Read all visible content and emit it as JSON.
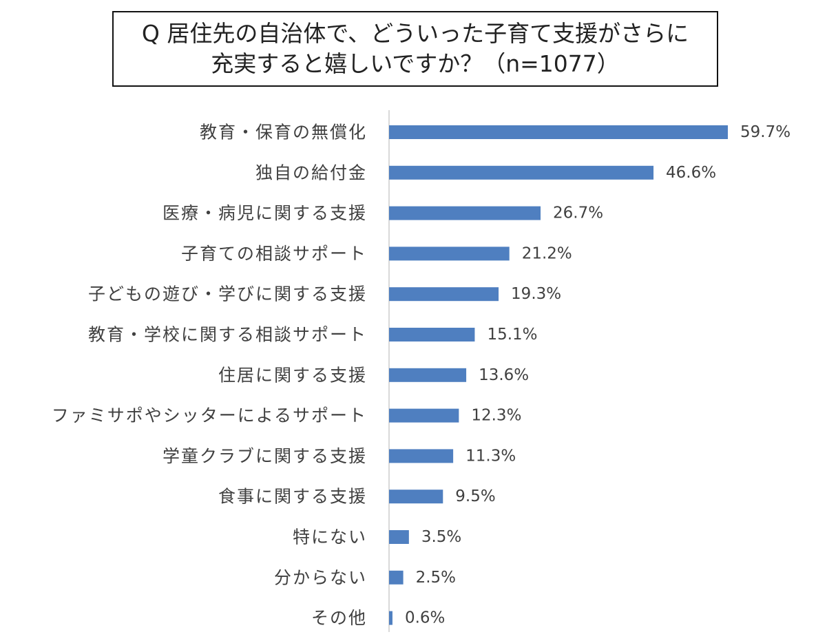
{
  "chart_data": {
    "type": "bar",
    "orientation": "horizontal",
    "title_lines": [
      "Q 居住先の自治体で、どういった子育て支援がさらに",
      "充実すると嬉しいですか？（n=1077）"
    ],
    "categories": [
      "教育・保育の無償化",
      "独自の給付金",
      "医療・病児に関する支援",
      "子育ての相談サポート",
      "子どもの遊び・学びに関する支援",
      "教育・学校に関する相談サポート",
      "住居に関する支援",
      "ファミサポやシッターによるサポート",
      "学童クラブに関する支援",
      "食事に関する支援",
      "特にない",
      "分からない",
      "その他"
    ],
    "values": [
      59.7,
      46.6,
      26.7,
      21.2,
      19.3,
      15.1,
      13.6,
      12.3,
      11.3,
      9.5,
      3.5,
      2.5,
      0.6
    ],
    "value_labels": [
      "59.7%",
      "46.6%",
      "26.7%",
      "21.2%",
      "19.3%",
      "15.1%",
      "13.6%",
      "12.3%",
      "11.3%",
      "9.5%",
      "3.5%",
      "2.5%",
      "0.6%"
    ],
    "unit": "%",
    "xlim": [
      0,
      60
    ],
    "bar_color": "#4f7fc0",
    "axis_color": "#d9d9d9",
    "grid": false,
    "legend": "none"
  }
}
